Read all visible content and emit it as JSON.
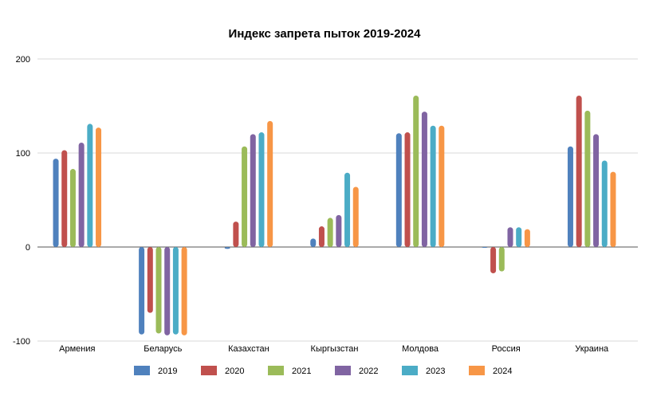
{
  "chart_data": {
    "type": "bar",
    "title": "Индекс запрета пыток 2019-2024",
    "categories": [
      "Армения",
      "Беларусь",
      "Казахстан",
      "Кыргызстан",
      "Молдова",
      "Россия",
      "Украина"
    ],
    "series": [
      {
        "name": "2019",
        "color": "#4F81BD",
        "values": [
          94,
          -93,
          -2,
          9,
          121,
          0,
          107
        ]
      },
      {
        "name": "2020",
        "color": "#C0504D",
        "values": [
          103,
          -70,
          27,
          22,
          122,
          -28,
          161
        ]
      },
      {
        "name": "2021",
        "color": "#9BBB59",
        "values": [
          83,
          -92,
          107,
          31,
          161,
          -26,
          145
        ]
      },
      {
        "name": "2022",
        "color": "#8064A2",
        "values": [
          111,
          -94,
          120,
          34,
          144,
          21,
          120
        ]
      },
      {
        "name": "2023",
        "color": "#4BACC6",
        "values": [
          131,
          -93,
          122,
          79,
          129,
          21,
          92
        ]
      },
      {
        "name": "2024",
        "color": "#F79646",
        "values": [
          127,
          -94,
          134,
          64,
          129,
          19,
          80
        ]
      }
    ],
    "ylim": [
      -100,
      200
    ],
    "yticks": [
      -100,
      0,
      100,
      200
    ],
    "grid": true,
    "legend_position": "bottom"
  }
}
